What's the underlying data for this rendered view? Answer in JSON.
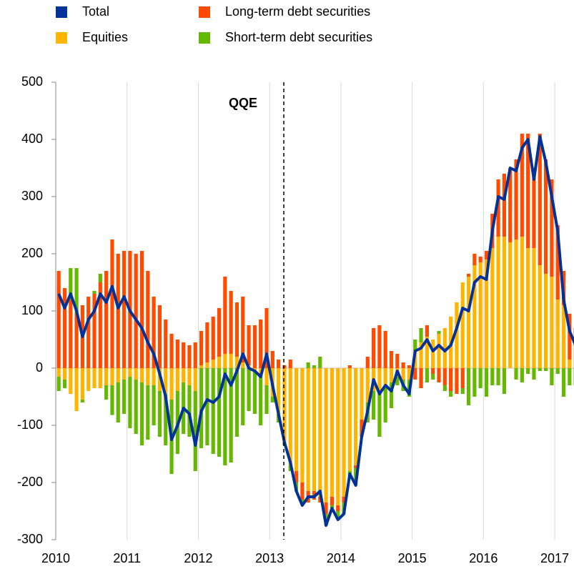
{
  "chart_data": {
    "type": "bar",
    "categories": [
      "2010",
      null,
      null,
      null,
      null,
      null,
      null,
      null,
      null,
      null,
      null,
      null,
      "2011",
      null,
      null,
      null,
      null,
      null,
      null,
      null,
      null,
      null,
      null,
      null,
      "2012",
      null,
      null,
      null,
      null,
      null,
      null,
      null,
      null,
      null,
      null,
      null,
      "2013",
      null,
      null,
      null,
      null,
      null,
      null,
      null,
      null,
      null,
      null,
      null,
      "2014",
      null,
      null,
      null,
      null,
      null,
      null,
      null,
      null,
      null,
      null,
      null,
      "2015",
      null,
      null,
      null,
      null,
      null,
      null,
      null,
      null,
      null,
      null,
      null,
      "2016",
      null,
      null,
      null,
      null,
      null,
      null,
      null,
      null,
      null,
      null,
      null,
      "2017",
      null,
      null,
      null
    ],
    "series": [
      {
        "name": "Total",
        "type": "line",
        "color": "#003299",
        "values": [
          130,
          105,
          130,
          100,
          55,
          85,
          100,
          130,
          115,
          143,
          105,
          125,
          100,
          85,
          70,
          45,
          25,
          -10,
          -50,
          -125,
          -100,
          -70,
          -80,
          -135,
          -75,
          -55,
          -60,
          -50,
          -10,
          -30,
          -5,
          25,
          0,
          -5,
          -15,
          25,
          -30,
          -80,
          -130,
          -165,
          -215,
          -240,
          -225,
          -225,
          -215,
          -275,
          -245,
          -265,
          -255,
          -185,
          -205,
          -120,
          -75,
          -20,
          -45,
          -30,
          -40,
          -5,
          -30,
          -45,
          30,
          35,
          50,
          30,
          40,
          30,
          40,
          70,
          105,
          100,
          150,
          160,
          155,
          240,
          300,
          295,
          350,
          345,
          385,
          400,
          330,
          405,
          360,
          300,
          240,
          120,
          65,
          40
        ]
      },
      {
        "name": "Equities",
        "type": "bar",
        "color": "#ffb400",
        "values": [
          -15,
          -20,
          -45,
          -75,
          -55,
          -40,
          -35,
          -35,
          -30,
          -30,
          -25,
          -20,
          -15,
          -20,
          -25,
          -30,
          -30,
          -40,
          -45,
          -55,
          -40,
          -25,
          -30,
          -40,
          5,
          10,
          15,
          20,
          25,
          25,
          20,
          10,
          5,
          -5,
          -10,
          -30,
          -50,
          -80,
          -130,
          -170,
          -180,
          -200,
          -215,
          -215,
          -225,
          -235,
          -225,
          -240,
          -225,
          -180,
          -170,
          -90,
          -60,
          -40,
          -40,
          -35,
          -25,
          -15,
          -20,
          -20,
          30,
          45,
          55,
          50,
          60,
          70,
          90,
          115,
          150,
          160,
          180,
          185,
          190,
          210,
          230,
          230,
          220,
          225,
          230,
          210,
          210,
          180,
          165,
          160,
          120,
          110,
          15,
          40
        ]
      },
      {
        "name": "Long-term debt securities",
        "type": "bar",
        "color": "#ff4b00",
        "values": [
          170,
          140,
          120,
          95,
          110,
          125,
          130,
          150,
          170,
          225,
          200,
          205,
          205,
          200,
          205,
          170,
          125,
          110,
          85,
          60,
          50,
          45,
          40,
          45,
          60,
          70,
          75,
          85,
          135,
          110,
          95,
          115,
          70,
          75,
          85,
          105,
          30,
          15,
          5,
          15,
          -20,
          -30,
          -20,
          -15,
          -10,
          -20,
          -15,
          -10,
          -10,
          5,
          -5,
          -30,
          20,
          70,
          75,
          65,
          30,
          25,
          10,
          5,
          -20,
          -35,
          20,
          -10,
          -25,
          -30,
          -40,
          -45,
          -35,
          5,
          20,
          10,
          15,
          60,
          100,
          110,
          130,
          140,
          180,
          200,
          140,
          230,
          200,
          170,
          130,
          60,
          80,
          30
        ]
      },
      {
        "name": "Short-term debt securities",
        "type": "bar",
        "color": "#65b800",
        "values": [
          -25,
          -15,
          55,
          80,
          -5,
          0,
          5,
          15,
          -25,
          -52,
          -70,
          -60,
          -90,
          -95,
          -110,
          -95,
          -70,
          -80,
          -90,
          -130,
          -110,
          -90,
          -90,
          -140,
          -140,
          -135,
          -150,
          -155,
          -170,
          -165,
          -120,
          -100,
          -75,
          -75,
          -90,
          -50,
          -10,
          -15,
          -5,
          -10,
          -15,
          -10,
          10,
          5,
          20,
          -20,
          -5,
          -15,
          -20,
          -10,
          -30,
          0,
          -35,
          -50,
          -80,
          -60,
          -45,
          -15,
          -20,
          -30,
          20,
          25,
          -25,
          -10,
          5,
          -10,
          -10,
          0,
          -10,
          -65,
          -50,
          -35,
          -50,
          -30,
          -30,
          -45,
          0,
          -20,
          -25,
          -10,
          -20,
          -5,
          -5,
          -30,
          -10,
          -50,
          -30,
          -30
        ]
      }
    ],
    "annotations": [
      "QQE"
    ],
    "ylim": [
      -300,
      500
    ],
    "yticks": [
      -300,
      -200,
      -100,
      0,
      100,
      200,
      300,
      400,
      500
    ],
    "grid": true
  }
}
